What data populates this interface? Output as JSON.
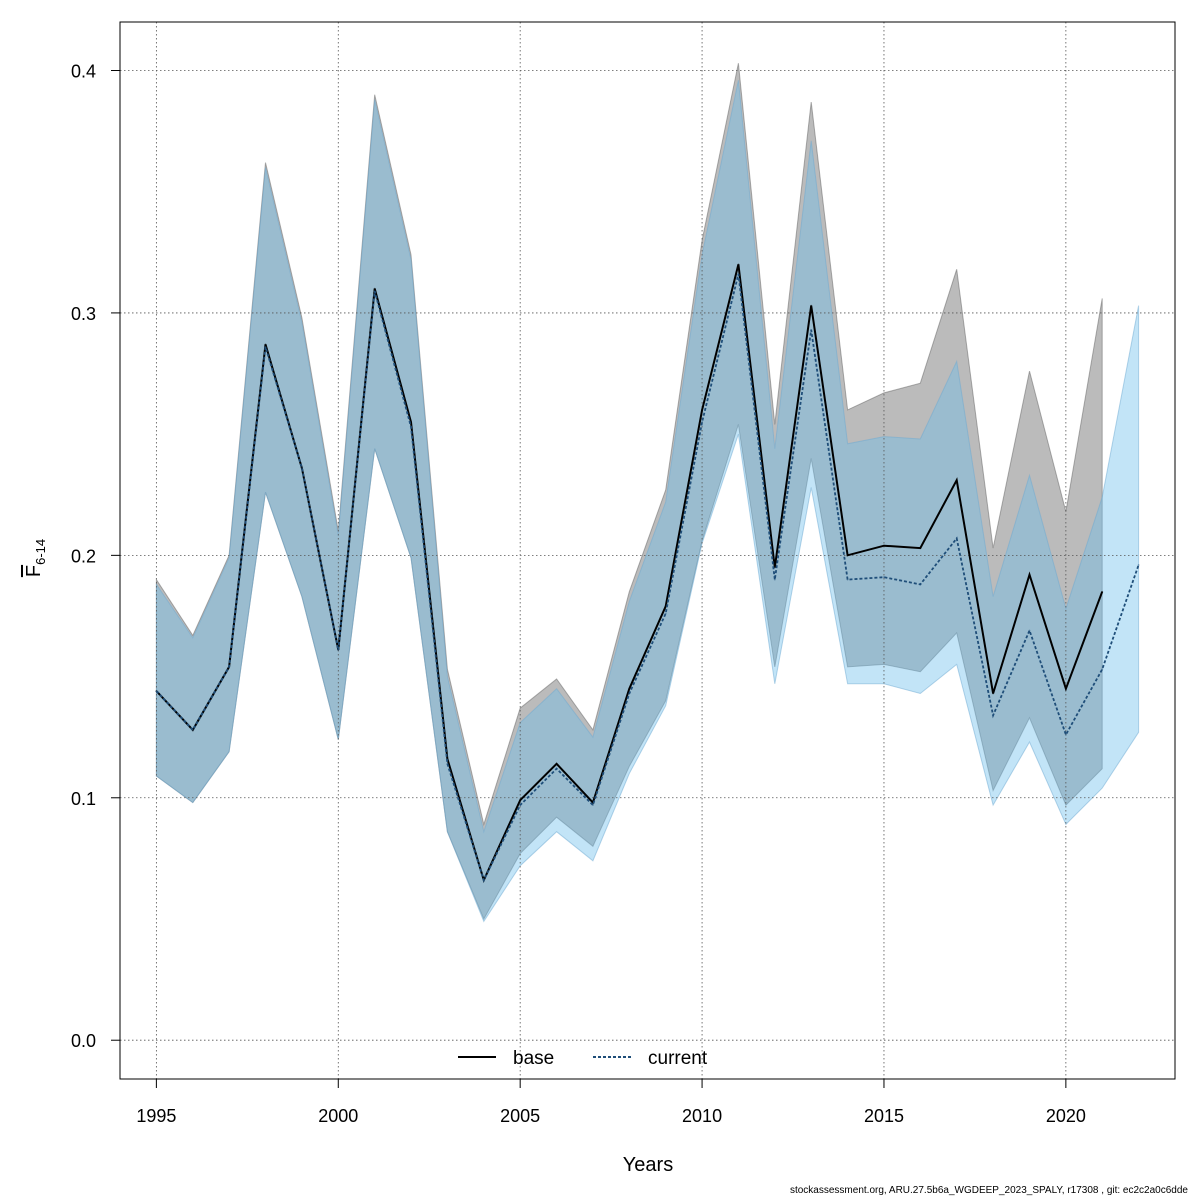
{
  "chart_data": {
    "type": "line",
    "xlabel": "Years",
    "ylabel_main": "F",
    "ylabel_sub": "6-14",
    "xlim": [
      1994,
      2023
    ],
    "ylim": [
      -0.016,
      0.42
    ],
    "xticks": [
      1995,
      2000,
      2005,
      2010,
      2015,
      2020
    ],
    "yticks": [
      0.0,
      0.1,
      0.2,
      0.3,
      0.4
    ],
    "grid": true,
    "legend_position": "bottom",
    "x": [
      1995,
      1996,
      1997,
      1998,
      1999,
      2000,
      2001,
      2002,
      2003,
      2004,
      2005,
      2006,
      2007,
      2008,
      2009,
      2010,
      2011,
      2012,
      2013,
      2014,
      2015,
      2016,
      2017,
      2018,
      2019,
      2020,
      2021,
      2022
    ],
    "series": [
      {
        "name": "base",
        "line_style": "solid",
        "line_color": "#000000",
        "band_color": "rgba(120,120,120,0.5)",
        "values": [
          0.144,
          0.128,
          0.154,
          0.287,
          0.236,
          0.161,
          0.31,
          0.255,
          0.116,
          0.066,
          0.099,
          0.114,
          0.098,
          0.145,
          0.179,
          0.26,
          0.32,
          0.195,
          0.303,
          0.2,
          0.204,
          0.203,
          0.231,
          0.143,
          0.192,
          0.145,
          0.185,
          null
        ],
        "lower": [
          0.109,
          0.098,
          0.119,
          0.226,
          0.183,
          0.124,
          0.244,
          0.199,
          0.086,
          0.05,
          0.077,
          0.092,
          0.08,
          0.113,
          0.14,
          0.206,
          0.254,
          0.154,
          0.24,
          0.154,
          0.155,
          0.152,
          0.168,
          0.103,
          0.133,
          0.097,
          0.112,
          null
        ],
        "upper": [
          0.19,
          0.167,
          0.2,
          0.362,
          0.298,
          0.21,
          0.39,
          0.324,
          0.153,
          0.089,
          0.137,
          0.149,
          0.128,
          0.185,
          0.227,
          0.33,
          0.403,
          0.254,
          0.387,
          0.26,
          0.267,
          0.271,
          0.318,
          0.203,
          0.276,
          0.218,
          0.306,
          null
        ]
      },
      {
        "name": "current",
        "line_style": "dotted",
        "line_color": "#1f4e79",
        "band_color": "rgba(110,190,235,0.42)",
        "values": [
          0.144,
          0.128,
          0.154,
          0.286,
          0.236,
          0.161,
          0.309,
          0.253,
          0.114,
          0.066,
          0.097,
          0.112,
          0.097,
          0.143,
          0.176,
          0.255,
          0.316,
          0.19,
          0.293,
          0.19,
          0.191,
          0.188,
          0.207,
          0.134,
          0.169,
          0.126,
          0.153,
          0.196
        ],
        "lower": [
          0.109,
          0.098,
          0.119,
          0.226,
          0.183,
          0.124,
          0.244,
          0.199,
          0.086,
          0.049,
          0.072,
          0.086,
          0.074,
          0.11,
          0.138,
          0.205,
          0.25,
          0.147,
          0.228,
          0.147,
          0.147,
          0.143,
          0.155,
          0.097,
          0.123,
          0.089,
          0.104,
          0.127
        ],
        "upper": [
          0.188,
          0.166,
          0.199,
          0.36,
          0.296,
          0.208,
          0.388,
          0.322,
          0.15,
          0.086,
          0.131,
          0.145,
          0.125,
          0.181,
          0.222,
          0.324,
          0.396,
          0.244,
          0.371,
          0.246,
          0.249,
          0.248,
          0.28,
          0.183,
          0.233,
          0.178,
          0.224,
          0.303
        ]
      }
    ]
  },
  "footer_text": "stockassessment.org, ARU.27.5b6a_WGDEEP_2023_SPALY, r17308 , git: ec2c2a0c6dde"
}
